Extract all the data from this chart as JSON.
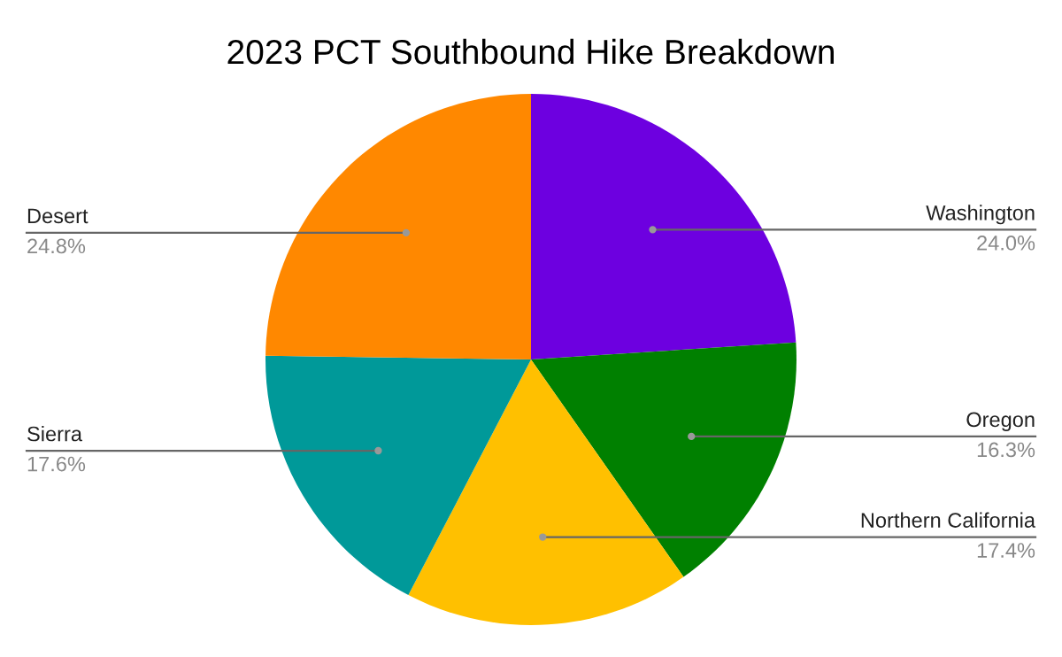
{
  "chart_data": {
    "type": "pie",
    "title": "2023 PCT Southbound Hike Breakdown",
    "categories": [
      "Washington",
      "Oregon",
      "Northern California",
      "Sierra",
      "Desert"
    ],
    "values": [
      24.0,
      16.3,
      17.4,
      17.6,
      24.8
    ],
    "value_labels": [
      "24.0%",
      "16.3%",
      "17.4%",
      "17.6%",
      "24.8%"
    ],
    "colors": [
      "#6d00e0",
      "#008000",
      "#ffc000",
      "#009999",
      "#ff8800"
    ],
    "legend": false
  }
}
